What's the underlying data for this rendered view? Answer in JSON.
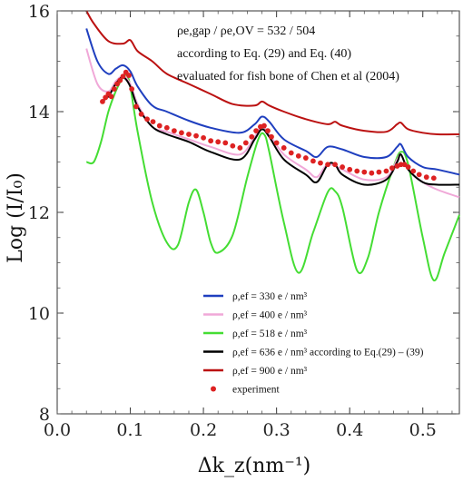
{
  "chart_data": {
    "type": "line",
    "title": "",
    "xlabel": "Δk_z(nm⁻¹)",
    "ylabel": "Log (I/I₀)",
    "xlim": [
      0.0,
      0.55
    ],
    "ylim": [
      8,
      16
    ],
    "xticks": [
      0.0,
      0.1,
      0.2,
      0.3,
      0.4,
      0.5
    ],
    "yticks": [
      8,
      10,
      12,
      14,
      16
    ],
    "xtick_labels": [
      "0.0",
      "0.1",
      "0.2",
      "0.3",
      "0.4",
      "0.5"
    ],
    "ytick_labels": [
      "8",
      "10",
      "12",
      "14",
      "16"
    ],
    "grid": false,
    "legend_position": "bottom-center",
    "annotations": [
      "ρe,gap / ρe,OV = 532 / 504",
      "according to Eq. (29) and Eq. (40)",
      "evaluated for fish bone of Chen et al (2004)"
    ],
    "series": [
      {
        "name": "ρ,ef = 330 e / nm³",
        "color": "#1f3fbf",
        "x": [
          0.04,
          0.055,
          0.07,
          0.08,
          0.09,
          0.1,
          0.11,
          0.13,
          0.15,
          0.18,
          0.21,
          0.25,
          0.27,
          0.28,
          0.29,
          0.31,
          0.34,
          0.355,
          0.37,
          0.39,
          0.42,
          0.45,
          0.465,
          0.47,
          0.48,
          0.5,
          0.52,
          0.55
        ],
        "y": [
          15.65,
          15.0,
          14.75,
          14.85,
          14.92,
          14.8,
          14.5,
          14.12,
          14.0,
          13.82,
          13.68,
          13.58,
          13.75,
          13.9,
          13.8,
          13.45,
          13.22,
          13.1,
          13.3,
          13.25,
          13.1,
          13.1,
          13.3,
          13.35,
          13.1,
          12.9,
          12.85,
          12.75
        ]
      },
      {
        "name": "ρ,ef = 400 e / nm³",
        "color": "#f0a8d8",
        "x": [
          0.04,
          0.055,
          0.07,
          0.08,
          0.09,
          0.1,
          0.11,
          0.13,
          0.15,
          0.18,
          0.21,
          0.25,
          0.27,
          0.28,
          0.29,
          0.31,
          0.34,
          0.355,
          0.37,
          0.39,
          0.42,
          0.45,
          0.465,
          0.47,
          0.48,
          0.5,
          0.52,
          0.55
        ],
        "y": [
          15.25,
          14.55,
          14.4,
          14.6,
          14.7,
          14.55,
          14.15,
          13.7,
          13.6,
          13.45,
          13.3,
          13.15,
          13.5,
          13.7,
          13.55,
          13.15,
          12.85,
          12.7,
          12.95,
          12.85,
          12.65,
          12.7,
          13.05,
          13.15,
          12.85,
          12.6,
          12.45,
          12.3
        ]
      },
      {
        "name": "ρ,ef = 518 e / nm³",
        "color": "#44dd33",
        "x": [
          0.04,
          0.05,
          0.06,
          0.07,
          0.08,
          0.09,
          0.095,
          0.1,
          0.11,
          0.13,
          0.15,
          0.165,
          0.18,
          0.19,
          0.2,
          0.21,
          0.22,
          0.24,
          0.26,
          0.275,
          0.283,
          0.29,
          0.31,
          0.33,
          0.35,
          0.37,
          0.38,
          0.39,
          0.41,
          0.425,
          0.44,
          0.46,
          0.47,
          0.48,
          0.5,
          0.515,
          0.53,
          0.55
        ],
        "y": [
          13.0,
          13.0,
          13.4,
          14.0,
          14.4,
          14.68,
          14.72,
          14.5,
          13.6,
          12.2,
          11.4,
          11.35,
          12.2,
          12.45,
          12.0,
          11.4,
          11.2,
          11.55,
          12.7,
          13.45,
          13.55,
          13.2,
          11.8,
          10.8,
          11.6,
          12.4,
          12.42,
          12.1,
          10.85,
          11.1,
          12.0,
          12.9,
          13.2,
          12.95,
          11.5,
          10.65,
          11.2,
          11.95
        ]
      },
      {
        "name": "ρ,ef = 636 e / nm³ according to Eq.(29) – (39)",
        "color": "#000000",
        "x": [
          0.06,
          0.07,
          0.08,
          0.09,
          0.1,
          0.11,
          0.13,
          0.15,
          0.18,
          0.21,
          0.25,
          0.27,
          0.28,
          0.29,
          0.31,
          0.34,
          0.355,
          0.37,
          0.38,
          0.39,
          0.42,
          0.45,
          0.465,
          0.47,
          0.48,
          0.5,
          0.52,
          0.55
        ],
        "y": [
          14.2,
          14.3,
          14.55,
          14.68,
          14.5,
          14.1,
          13.7,
          13.55,
          13.4,
          13.2,
          13.05,
          13.45,
          13.65,
          13.5,
          13.05,
          12.75,
          12.6,
          12.95,
          12.95,
          12.75,
          12.55,
          12.65,
          13.0,
          13.15,
          12.85,
          12.6,
          12.55,
          12.55
        ]
      },
      {
        "name": "ρ,ef = 900 e / nm³",
        "color": "#bb1111",
        "x": [
          0.04,
          0.05,
          0.07,
          0.09,
          0.1,
          0.11,
          0.13,
          0.15,
          0.18,
          0.21,
          0.24,
          0.27,
          0.28,
          0.29,
          0.31,
          0.34,
          0.37,
          0.38,
          0.39,
          0.42,
          0.45,
          0.465,
          0.47,
          0.48,
          0.5,
          0.52,
          0.55
        ],
        "y": [
          16.0,
          15.75,
          15.4,
          15.35,
          15.42,
          15.2,
          15.0,
          14.75,
          14.55,
          14.35,
          14.15,
          14.12,
          14.2,
          14.12,
          14.0,
          13.85,
          13.75,
          13.8,
          13.72,
          13.62,
          13.6,
          13.75,
          13.78,
          13.65,
          13.58,
          13.55,
          13.55
        ]
      },
      {
        "name": "experiment",
        "color": "#dd2222",
        "marker": "dot",
        "x": [
          0.062,
          0.066,
          0.07,
          0.074,
          0.078,
          0.082,
          0.086,
          0.09,
          0.094,
          0.098,
          0.102,
          0.108,
          0.115,
          0.123,
          0.131,
          0.14,
          0.15,
          0.16,
          0.17,
          0.18,
          0.19,
          0.2,
          0.21,
          0.22,
          0.23,
          0.24,
          0.25,
          0.258,
          0.266,
          0.272,
          0.278,
          0.283,
          0.288,
          0.293,
          0.3,
          0.31,
          0.32,
          0.33,
          0.34,
          0.35,
          0.36,
          0.37,
          0.38,
          0.39,
          0.4,
          0.41,
          0.42,
          0.43,
          0.44,
          0.45,
          0.458,
          0.465,
          0.47,
          0.475,
          0.48,
          0.487,
          0.495,
          0.505,
          0.515
        ],
        "y": [
          14.2,
          14.28,
          14.35,
          14.3,
          14.45,
          14.55,
          14.62,
          14.7,
          14.78,
          14.72,
          14.45,
          14.1,
          13.95,
          13.85,
          13.8,
          13.72,
          13.68,
          13.62,
          13.58,
          13.55,
          13.52,
          13.48,
          13.42,
          13.4,
          13.38,
          13.32,
          13.28,
          13.38,
          13.5,
          13.62,
          13.7,
          13.72,
          13.62,
          13.5,
          13.38,
          13.28,
          13.18,
          13.12,
          13.08,
          13.02,
          12.98,
          12.95,
          12.95,
          12.9,
          12.85,
          12.82,
          12.8,
          12.78,
          12.8,
          12.82,
          12.88,
          12.92,
          12.95,
          12.95,
          12.9,
          12.82,
          12.75,
          12.7,
          12.68
        ]
      }
    ]
  }
}
